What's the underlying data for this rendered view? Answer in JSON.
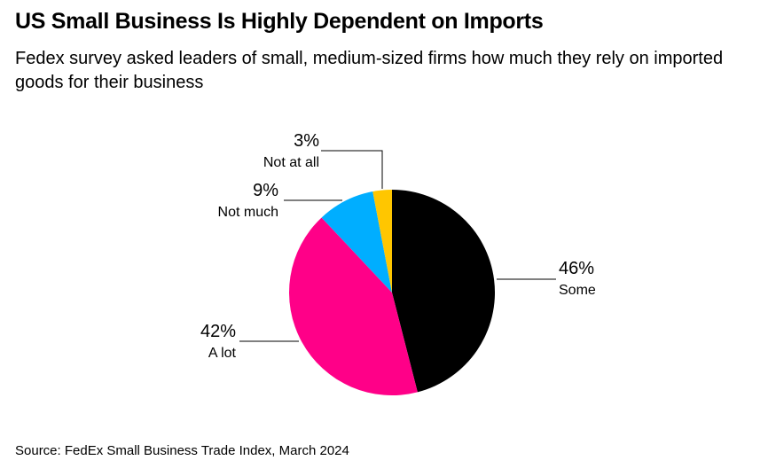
{
  "title": "US Small Business Is Highly Dependent on Imports",
  "subtitle": "Fedex survey asked leaders of small, medium-sized firms how much they rely on imported goods for their business",
  "source": "Source: FedEx Small Business Trade Index, March 2024",
  "chart_data": {
    "type": "pie",
    "title": "US Small Business Is Highly Dependent on Imports",
    "start": "top",
    "direction": "clockwise",
    "slices": [
      {
        "label": "Some",
        "value": 46,
        "value_label": "46%",
        "color": "#000000"
      },
      {
        "label": "A lot",
        "value": 42,
        "value_label": "42%",
        "color": "#ff0088"
      },
      {
        "label": "Not much",
        "value": 9,
        "value_label": "9%",
        "color": "#00aeff"
      },
      {
        "label": "Not at all",
        "value": 3,
        "value_label": "3%",
        "color": "#ffc600"
      }
    ]
  }
}
